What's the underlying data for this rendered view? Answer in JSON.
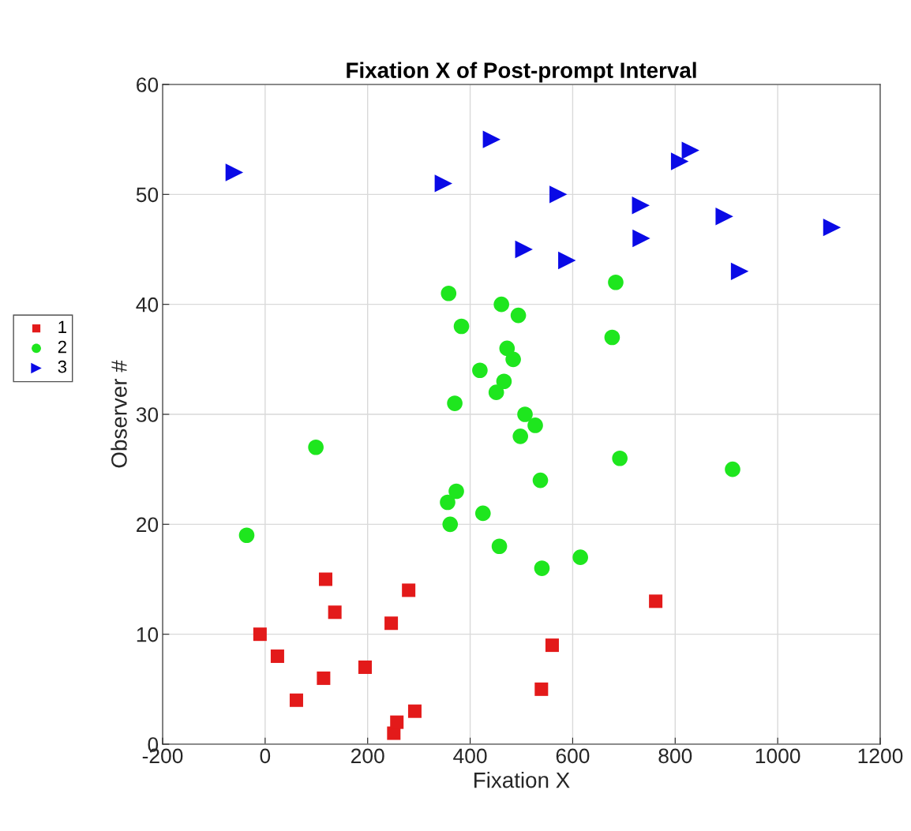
{
  "chart_data": {
    "type": "scatter",
    "title": "Fixation X of Post-prompt Interval",
    "xlabel": "Fixation X",
    "ylabel": "Observer #",
    "xlim": [
      -200,
      1200
    ],
    "xticks": [
      -200,
      0,
      200,
      400,
      600,
      800,
      1000,
      1200
    ],
    "ylim": [
      0,
      60
    ],
    "yticks": [
      0,
      10,
      20,
      30,
      40,
      50,
      60
    ],
    "grid": true,
    "legend": "left",
    "series": [
      {
        "name": "1",
        "color": "#e31a1a",
        "marker": "square",
        "x": [
          -10,
          24,
          61,
          114,
          118,
          136,
          195,
          246,
          251,
          257,
          280,
          292,
          539,
          560,
          762
        ],
        "values": [
          10,
          8,
          4,
          6,
          15,
          12,
          7,
          11,
          1,
          2,
          14,
          3,
          5,
          9,
          13
        ]
      },
      {
        "name": "2",
        "color": "#1ee61e",
        "marker": "circle",
        "x": [
          -36,
          99,
          358,
          383,
          370,
          356,
          361,
          373,
          419,
          425,
          461,
          466,
          451,
          472,
          484,
          494,
          507,
          527,
          498,
          537,
          457,
          540,
          615,
          684,
          677,
          692,
          912
        ],
        "values": [
          19,
          27,
          41,
          38,
          31,
          22,
          20,
          23,
          34,
          21,
          40,
          33,
          32,
          36,
          35,
          39,
          30,
          29,
          28,
          24,
          18,
          16,
          17,
          42,
          37,
          26,
          25
        ]
      },
      {
        "name": "3",
        "color": "#0a0ae6",
        "marker": "triangle",
        "x": [
          -60,
          442,
          348,
          572,
          733,
          734,
          809,
          830,
          896,
          1106,
          505,
          589,
          926
        ],
        "values": [
          52,
          55,
          51,
          50,
          49,
          46,
          53,
          54,
          48,
          47,
          45,
          44,
          43
        ]
      }
    ]
  }
}
